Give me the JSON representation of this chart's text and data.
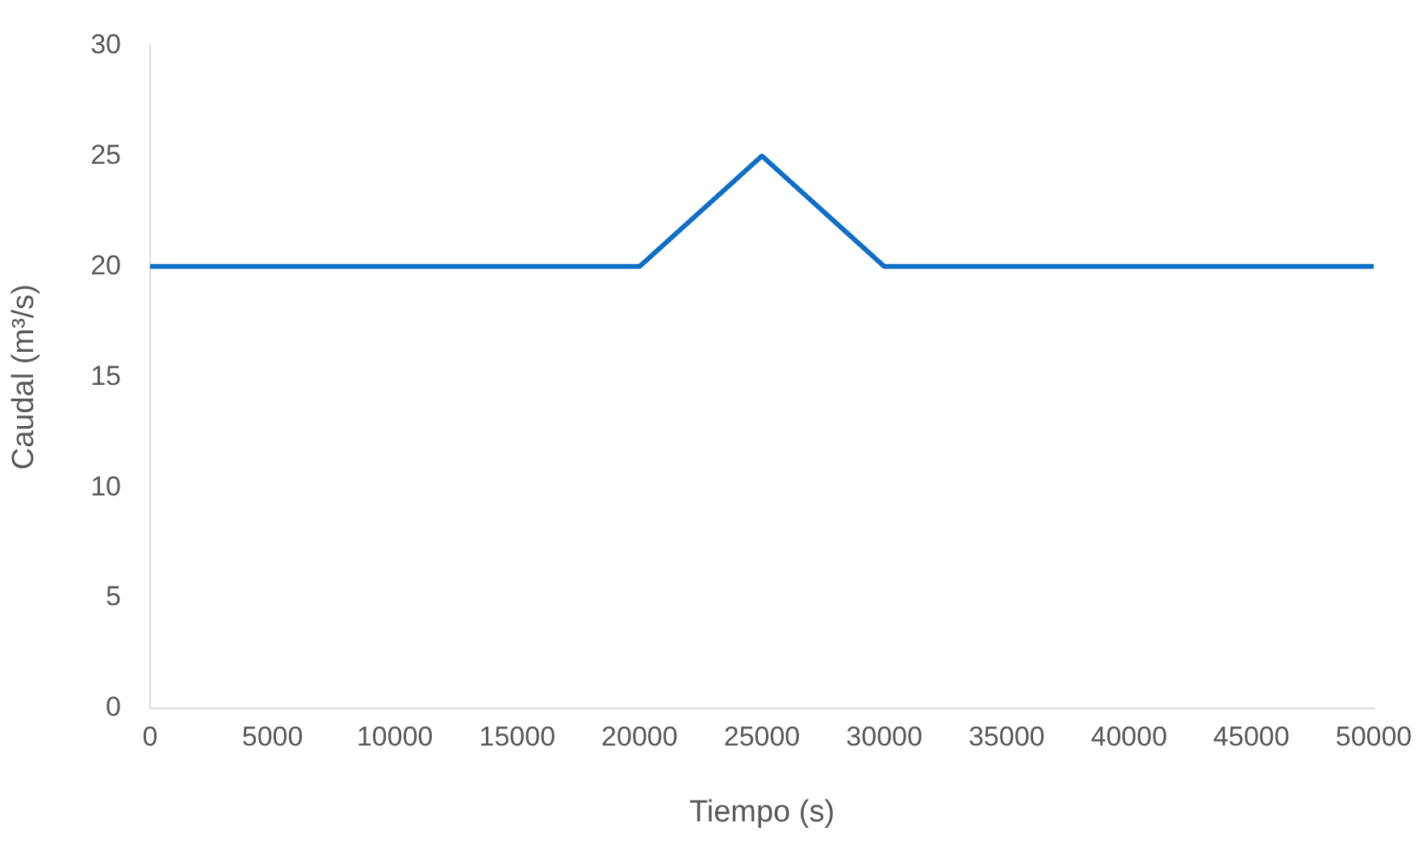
{
  "chart_data": {
    "type": "line",
    "xlabel": "Tiempo (s)",
    "ylabel": "Caudal (m³/s)",
    "series": [
      {
        "color": "#0f6fc6",
        "x": [
          0,
          20000,
          25000,
          30000,
          50000
        ],
        "values": [
          20,
          20,
          25,
          20,
          20
        ]
      }
    ],
    "xlim": [
      0,
      50000
    ],
    "xticks": [
      0,
      5000,
      10000,
      15000,
      20000,
      25000,
      30000,
      35000,
      40000,
      45000,
      50000
    ],
    "ylim": [
      0,
      30
    ],
    "yticks": [
      0,
      5,
      10,
      15,
      20,
      25,
      30
    ],
    "grid": false,
    "legend": false,
    "marker": "none",
    "line_style": "solid"
  }
}
